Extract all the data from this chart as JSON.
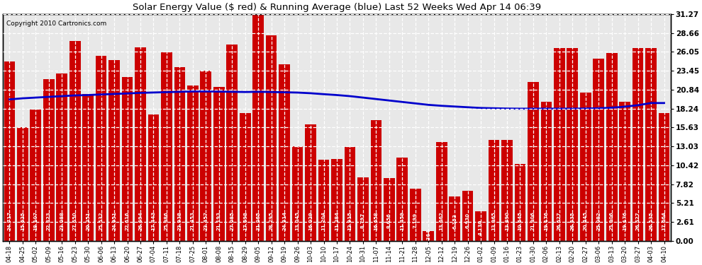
{
  "title": "Solar Energy Value ($ red) & Running Average (blue) Last 52 Weeks Wed Apr 14 06:39",
  "copyright": "Copyright 2010 Cartronics.com",
  "bar_color": "#cc0000",
  "line_color": "#0000cc",
  "background_color": "#ffffff",
  "plot_background": "#e8e8e8",
  "grid_color": "#ffffff",
  "yticks": [
    0.0,
    2.61,
    5.21,
    7.82,
    10.42,
    13.03,
    15.63,
    18.24,
    20.84,
    23.45,
    26.05,
    28.66,
    31.27
  ],
  "ylim": [
    0,
    31.27
  ],
  "categories": [
    "04-18",
    "04-25",
    "05-02",
    "05-09",
    "05-16",
    "05-23",
    "05-30",
    "06-06",
    "06-13",
    "06-20",
    "06-27",
    "07-04",
    "07-11",
    "07-18",
    "07-25",
    "08-01",
    "08-08",
    "08-15",
    "08-29",
    "09-05",
    "09-12",
    "09-19",
    "09-26",
    "10-03",
    "10-10",
    "10-17",
    "10-24",
    "10-31",
    "11-07",
    "11-14",
    "11-21",
    "11-28",
    "12-05",
    "12-12",
    "12-19",
    "12-26",
    "01-02",
    "01-09",
    "01-16",
    "01-23",
    "01-30",
    "02-06",
    "02-13",
    "02-20",
    "02-27",
    "03-06",
    "03-13",
    "03-20",
    "03-27",
    "04-03",
    "04-10"
  ],
  "values": [
    24.717,
    15.625,
    18.107,
    22.323,
    23.088,
    27.55,
    20.251,
    25.532,
    24.951,
    22.616,
    26.694,
    17.443,
    25.986,
    23.938,
    21.453,
    23.457,
    21.193,
    27.085,
    17.598,
    31.265,
    28.295,
    24.314,
    13.045,
    16.029,
    11.204,
    11.284,
    12.915,
    8.797,
    16.658,
    8.656,
    11.459,
    7.199,
    1.364,
    13.662,
    6.153,
    6.93,
    4.13,
    13.965,
    13.89,
    10.645,
    21.906,
    19.176,
    26.527,
    26.535,
    20.445,
    25.082,
    25.906,
    19.176,
    26.527,
    26.535,
    17.664
  ],
  "running_avg": [
    19.5,
    19.65,
    19.75,
    19.85,
    19.95,
    20.05,
    20.1,
    20.18,
    20.25,
    20.32,
    20.4,
    20.45,
    20.5,
    20.55,
    20.6,
    20.6,
    20.58,
    20.55,
    20.52,
    20.55,
    20.52,
    20.48,
    20.44,
    20.35,
    20.22,
    20.1,
    19.95,
    19.75,
    19.55,
    19.35,
    19.15,
    18.95,
    18.75,
    18.62,
    18.52,
    18.42,
    18.32,
    18.28,
    18.24,
    18.22,
    18.22,
    18.22,
    18.22,
    18.22,
    18.24,
    18.28,
    18.35,
    18.5,
    18.7,
    19.0,
    19.0
  ]
}
